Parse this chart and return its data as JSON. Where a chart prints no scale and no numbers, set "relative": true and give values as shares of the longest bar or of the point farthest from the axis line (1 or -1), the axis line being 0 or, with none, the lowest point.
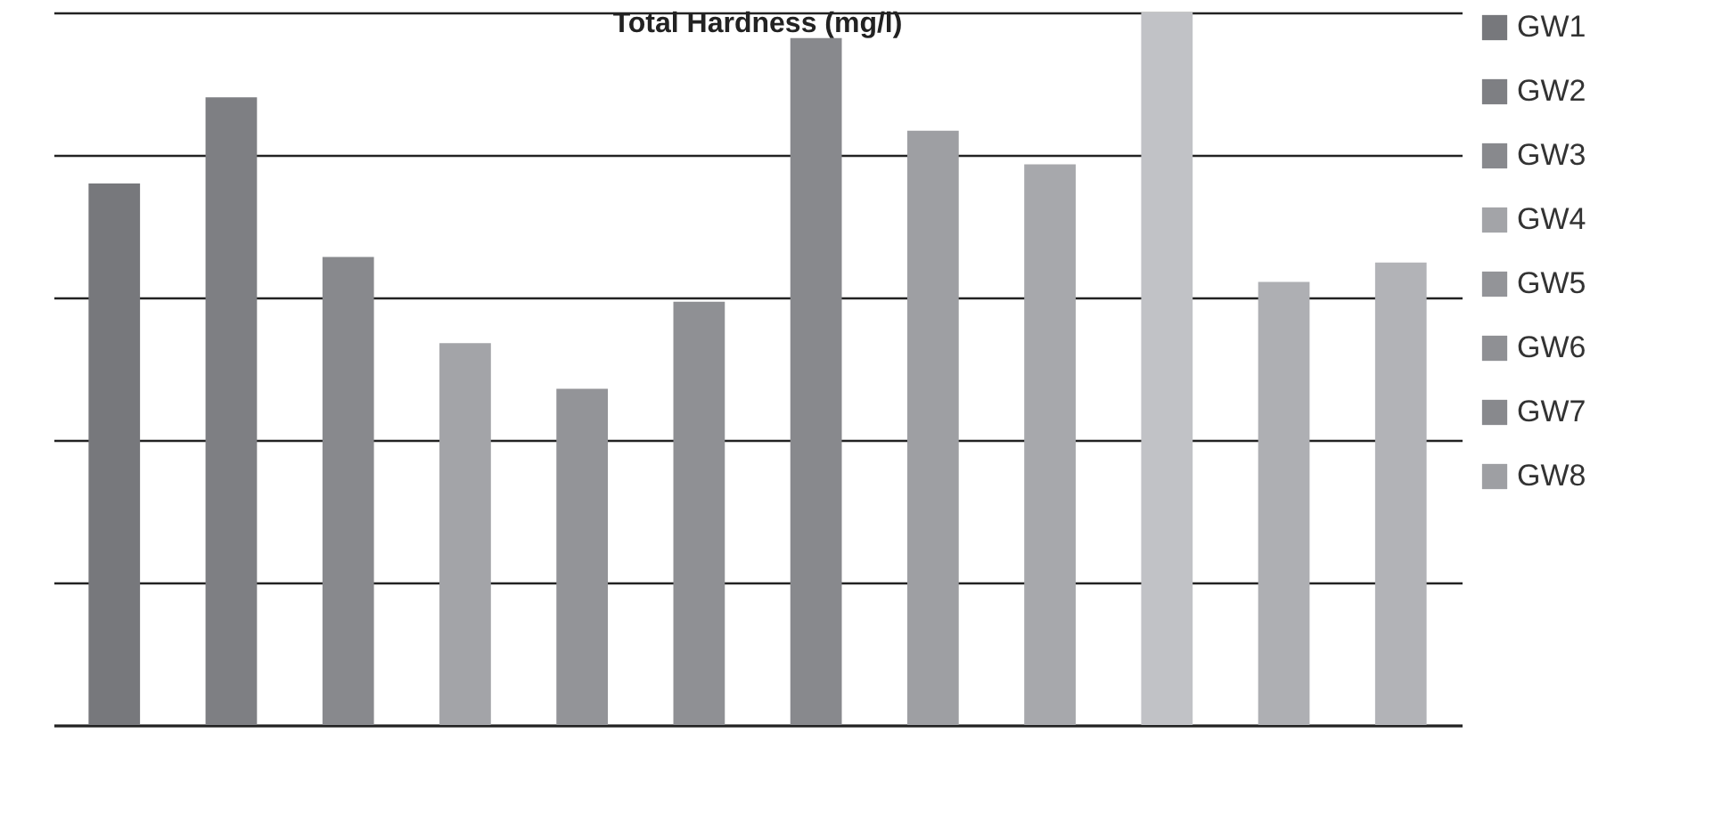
{
  "chart_data": {
    "type": "bar",
    "title": "Total Hardness (mg/l)",
    "relative": true,
    "stacked": true,
    "grid": "y",
    "legend": "right",
    "categories": [
      null,
      null,
      null,
      null,
      null,
      null,
      null,
      null,
      null,
      null,
      null,
      null
    ],
    "series": [
      {
        "name": "GW1",
        "color": "#77787c",
        "values": [
          0.76,
          null,
          null,
          null,
          null,
          null,
          null,
          null,
          null,
          null,
          null,
          null
        ]
      },
      {
        "name": "GW2",
        "color": "#7e7f83",
        "values": [
          null,
          0.881,
          null,
          null,
          null,
          null,
          null,
          null,
          null,
          null,
          null,
          null
        ]
      },
      {
        "name": "GW3",
        "color": "#88898d",
        "values": [
          null,
          null,
          0.657,
          null,
          null,
          null,
          null,
          null,
          null,
          null,
          null,
          null
        ]
      },
      {
        "name": "GW4",
        "color": "#a3a4a8",
        "values": [
          null,
          null,
          null,
          0.536,
          null,
          null,
          null,
          null,
          null,
          null,
          null,
          null
        ]
      },
      {
        "name": "GW5",
        "color": "#939498",
        "values": [
          null,
          null,
          null,
          null,
          0.472,
          null,
          null,
          null,
          null,
          null,
          null,
          null
        ]
      },
      {
        "name": "GW6",
        "color": "#8f9094",
        "values": [
          null,
          null,
          null,
          null,
          null,
          0.594,
          null,
          null,
          null,
          null,
          null,
          null
        ]
      },
      {
        "name": "GW7",
        "color": "#88898d",
        "values": [
          null,
          null,
          null,
          null,
          null,
          null,
          0.964,
          null,
          null,
          null,
          null,
          null
        ]
      },
      {
        "name": "GW8",
        "color": "#9e9fa3",
        "values": [
          null,
          null,
          null,
          null,
          null,
          null,
          null,
          0.834,
          null,
          null,
          null,
          null
        ]
      },
      {
        "color": "#a7a8ac",
        "values": [
          null,
          null,
          null,
          null,
          null,
          null,
          null,
          null,
          0.787,
          null,
          null,
          null
        ]
      },
      {
        "color": "#c1c2c6",
        "values": [
          null,
          null,
          null,
          null,
          null,
          null,
          null,
          null,
          null,
          1,
          null,
          null
        ]
      },
      {
        "color": "#aeafb3",
        "values": [
          null,
          null,
          null,
          null,
          null,
          null,
          null,
          null,
          null,
          null,
          0.622,
          null
        ]
      },
      {
        "color": "#b2b3b7",
        "values": [
          null,
          null,
          null,
          null,
          null,
          null,
          null,
          null,
          null,
          null,
          null,
          0.649
        ]
      }
    ]
  }
}
